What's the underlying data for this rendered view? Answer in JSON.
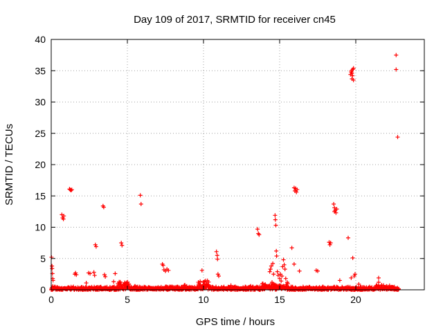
{
  "chart_data": {
    "type": "scatter",
    "title": "Day 109 of 2017, SRMTID for receiver cn45",
    "xlabel": "GPS time / hours",
    "ylabel": "SRMTID / TECUs",
    "xlim": [
      0,
      24.5
    ],
    "ylim": [
      0,
      40
    ],
    "xticks": [
      0,
      5,
      10,
      15,
      20
    ],
    "yticks": [
      0,
      5,
      10,
      15,
      20,
      25,
      30,
      35,
      40
    ],
    "grid": true,
    "legend": "none",
    "marker": "plus",
    "color": "#ff0000",
    "baseline_noise": {
      "x_range": [
        0.0,
        22.8
      ],
      "step_hours": 0.04,
      "typical_max": 0.5
    },
    "baseline_bursts": [
      {
        "x_range": [
          4.3,
          5.1
        ],
        "max": 1.3
      },
      {
        "x_range": [
          8.7,
          9.0
        ],
        "max": 0.9
      },
      {
        "x_range": [
          9.6,
          10.4
        ],
        "max": 1.5
      },
      {
        "x_range": [
          13.8,
          15.6
        ],
        "max": 1.0
      },
      {
        "x_range": [
          21.3,
          22.5
        ],
        "max": 0.8
      }
    ],
    "points": [
      [
        0.05,
        3.8
      ],
      [
        0.06,
        3.4
      ],
      [
        0.08,
        2.6
      ],
      [
        0.1,
        1.8
      ],
      [
        0.12,
        1.5
      ],
      [
        0.02,
        5.2
      ],
      [
        0.1,
        0.6
      ],
      [
        0.7,
        12.0
      ],
      [
        0.75,
        11.5
      ],
      [
        0.8,
        11.3
      ],
      [
        0.83,
        11.8
      ],
      [
        1.2,
        16.1
      ],
      [
        1.25,
        16.0
      ],
      [
        1.3,
        15.9
      ],
      [
        1.35,
        16.0
      ],
      [
        1.55,
        2.5
      ],
      [
        1.6,
        2.7
      ],
      [
        1.65,
        2.4
      ],
      [
        2.3,
        1.1
      ],
      [
        2.45,
        2.7
      ],
      [
        2.55,
        2.6
      ],
      [
        2.8,
        2.8
      ],
      [
        2.85,
        2.3
      ],
      [
        2.9,
        7.2
      ],
      [
        2.95,
        6.9
      ],
      [
        3.4,
        13.4
      ],
      [
        3.45,
        13.2
      ],
      [
        3.5,
        2.4
      ],
      [
        3.55,
        2.1
      ],
      [
        4.1,
        1.3
      ],
      [
        4.2,
        2.6
      ],
      [
        4.6,
        7.5
      ],
      [
        4.65,
        7.1
      ],
      [
        5.5,
        0.6
      ],
      [
        5.85,
        15.1
      ],
      [
        5.9,
        13.7
      ],
      [
        7.3,
        4.1
      ],
      [
        7.35,
        3.9
      ],
      [
        7.4,
        3.2
      ],
      [
        7.5,
        3.0
      ],
      [
        7.6,
        3.3
      ],
      [
        7.7,
        3.1
      ],
      [
        9.9,
        3.1
      ],
      [
        10.2,
        1.0
      ],
      [
        10.85,
        6.1
      ],
      [
        10.9,
        5.5
      ],
      [
        10.92,
        4.9
      ],
      [
        10.95,
        2.5
      ],
      [
        11.0,
        2.2
      ],
      [
        11.8,
        0.7
      ],
      [
        12.6,
        0.4
      ],
      [
        13.1,
        0.6
      ],
      [
        13.55,
        9.7
      ],
      [
        13.6,
        9.0
      ],
      [
        13.65,
        8.8
      ],
      [
        13.9,
        1.0
      ],
      [
        14.0,
        0.8
      ],
      [
        14.35,
        2.9
      ],
      [
        14.4,
        3.3
      ],
      [
        14.45,
        3.8
      ],
      [
        14.55,
        4.2
      ],
      [
        14.6,
        2.5
      ],
      [
        14.5,
        1.2
      ],
      [
        14.7,
        11.9
      ],
      [
        14.72,
        11.2
      ],
      [
        14.75,
        10.3
      ],
      [
        14.78,
        6.2
      ],
      [
        14.8,
        5.4
      ],
      [
        14.85,
        2.9
      ],
      [
        14.9,
        2.3
      ],
      [
        15.0,
        1.8
      ],
      [
        15.05,
        2.5
      ],
      [
        15.1,
        1.4
      ],
      [
        15.15,
        2.2
      ],
      [
        15.2,
        3.7
      ],
      [
        15.25,
        4.8
      ],
      [
        15.3,
        4.0
      ],
      [
        15.35,
        3.3
      ],
      [
        15.4,
        1.8
      ],
      [
        15.5,
        1.2
      ],
      [
        15.8,
        6.7
      ],
      [
        15.95,
        4.1
      ],
      [
        15.95,
        16.3
      ],
      [
        16.0,
        15.8
      ],
      [
        16.05,
        16.2
      ],
      [
        16.1,
        15.6
      ],
      [
        16.15,
        16.0
      ],
      [
        16.3,
        3.0
      ],
      [
        17.4,
        3.1
      ],
      [
        17.5,
        3.0
      ],
      [
        18.25,
        7.6
      ],
      [
        18.3,
        7.2
      ],
      [
        18.35,
        7.5
      ],
      [
        18.55,
        13.7
      ],
      [
        18.6,
        13.1
      ],
      [
        18.65,
        12.7
      ],
      [
        18.7,
        12.3
      ],
      [
        18.75,
        12.9
      ],
      [
        18.6,
        12.5
      ],
      [
        18.95,
        1.5
      ],
      [
        19.5,
        8.3
      ],
      [
        19.65,
        34.4
      ],
      [
        19.7,
        34.8
      ],
      [
        19.72,
        35.0
      ],
      [
        19.75,
        34.6
      ],
      [
        19.8,
        35.2
      ],
      [
        19.85,
        35.4
      ],
      [
        19.78,
        34.2
      ],
      [
        19.75,
        33.7
      ],
      [
        19.85,
        33.5
      ],
      [
        19.7,
        1.9
      ],
      [
        19.8,
        5.1
      ],
      [
        19.9,
        2.2
      ],
      [
        19.95,
        2.5
      ],
      [
        20.2,
        0.9
      ],
      [
        21.5,
        1.9
      ],
      [
        21.5,
        1.2
      ],
      [
        22.65,
        37.5
      ],
      [
        22.65,
        35.2
      ],
      [
        22.75,
        24.4
      ]
    ]
  }
}
